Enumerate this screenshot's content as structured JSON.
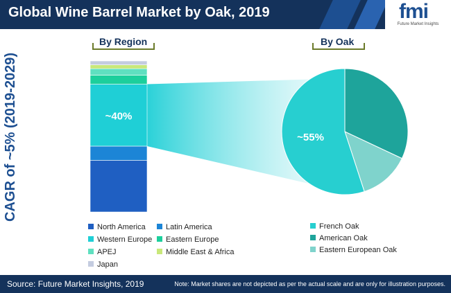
{
  "header": {
    "title": "Global Wine Barrel Market by Oak, 2019"
  },
  "logo": {
    "mark": "fmi",
    "subtitle": "Future Market Insights"
  },
  "footer": {
    "source": "Source: Future Market Insights, 2019",
    "note": "Note: Market shares are not depicted as per the actual scale and are only for illustration purposes."
  },
  "chart_data": [
    {
      "type": "bar",
      "title": "By Region",
      "ylabel": "CAGR of ~5% (2019-2029)",
      "stacked": true,
      "series": [
        {
          "name": "North America",
          "value": 40,
          "color": "#1f5fc2"
        },
        {
          "name": "Latin America",
          "value": 11,
          "color": "#1c85d6"
        },
        {
          "name": "Western Europe",
          "value": 48,
          "color": "#1fcfd6",
          "label": "~40%"
        },
        {
          "name": "Eastern Europe",
          "value": 7,
          "color": "#1ccf9c"
        },
        {
          "name": "APEJ",
          "value": 5,
          "color": "#5fe0c0"
        },
        {
          "name": "Middle East & Africa",
          "value": 3,
          "color": "#c9e87a"
        },
        {
          "name": "Japan",
          "value": 3,
          "color": "#c4cce0"
        }
      ]
    },
    {
      "type": "pie",
      "title": "By Oak",
      "slices": [
        {
          "name": "French Oak",
          "value": 55,
          "color": "#27cfd0",
          "label": "~55%"
        },
        {
          "name": "American Oak",
          "value": 32,
          "color": "#1ea49b"
        },
        {
          "name": "Eastern European Oak",
          "value": 13,
          "color": "#7fd3cc"
        }
      ]
    }
  ]
}
